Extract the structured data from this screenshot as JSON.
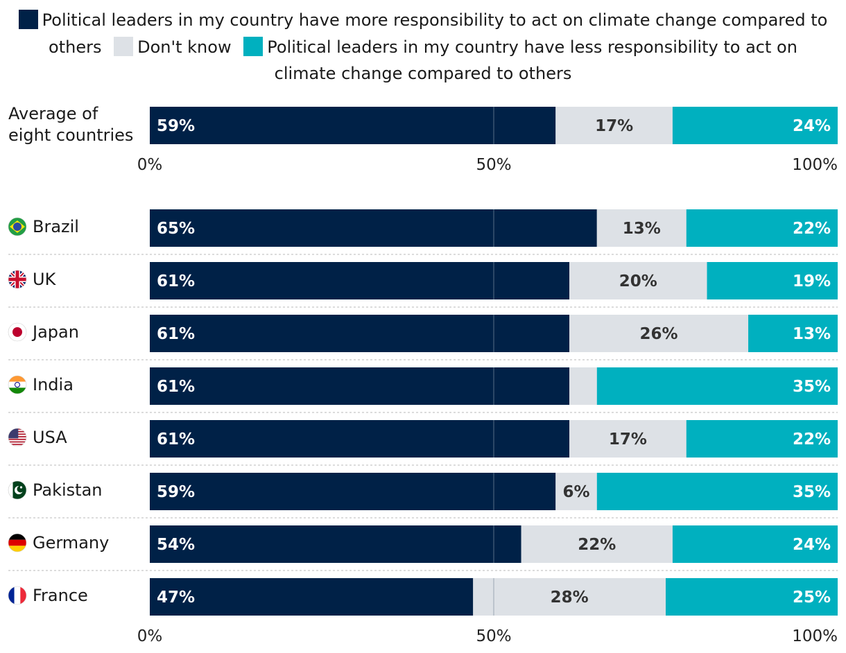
{
  "colors": {
    "more": "#002147",
    "dontknow": "#dde1e6",
    "less": "#00b0bf"
  },
  "legend": [
    {
      "key": "more",
      "label": "Political leaders in my country have more responsibility to act on climate change compared to others"
    },
    {
      "key": "dontknow",
      "label": "Don't know"
    },
    {
      "key": "less",
      "label": "Political leaders in my country have less responsibility to act on climate change compared to others"
    }
  ],
  "chart_data": {
    "type": "bar",
    "orientation": "horizontal",
    "stacked": true,
    "xlim": [
      0,
      100
    ],
    "ticks": [
      "0%",
      "50%",
      "100%"
    ],
    "series_keys": [
      "more",
      "dontknow",
      "less"
    ],
    "summary": [
      {
        "category": "Average of eight countries",
        "lines": [
          "Average of",
          "eight countries"
        ],
        "values": [
          59,
          17,
          24
        ],
        "labels": [
          "59%",
          "17%",
          "24%"
        ]
      }
    ],
    "countries": [
      {
        "category": "Brazil",
        "flag": "brazil-flag-icon",
        "values": [
          65,
          13,
          22
        ],
        "labels": [
          "65%",
          "13%",
          "22%"
        ]
      },
      {
        "category": "UK",
        "flag": "uk-flag-icon",
        "values": [
          61,
          20,
          19
        ],
        "labels": [
          "61%",
          "20%",
          "19%"
        ]
      },
      {
        "category": "Japan",
        "flag": "japan-flag-icon",
        "values": [
          61,
          26,
          13
        ],
        "labels": [
          "61%",
          "26%",
          "13%"
        ]
      },
      {
        "category": "India",
        "flag": "india-flag-icon",
        "values": [
          61,
          4,
          35
        ],
        "labels": [
          "61%",
          "",
          "35%"
        ]
      },
      {
        "category": "USA",
        "flag": "usa-flag-icon",
        "values": [
          61,
          17,
          22
        ],
        "labels": [
          "61%",
          "17%",
          "22%"
        ]
      },
      {
        "category": "Pakistan",
        "flag": "pakistan-flag-icon",
        "values": [
          59,
          6,
          35
        ],
        "labels": [
          "59%",
          "6%",
          "35%"
        ]
      },
      {
        "category": "Germany",
        "flag": "germany-flag-icon",
        "values": [
          54,
          22,
          24
        ],
        "labels": [
          "54%",
          "22%",
          "24%"
        ]
      },
      {
        "category": "France",
        "flag": "france-flag-icon",
        "values": [
          47,
          28,
          25
        ],
        "labels": [
          "47%",
          "28%",
          "25%"
        ]
      }
    ]
  }
}
